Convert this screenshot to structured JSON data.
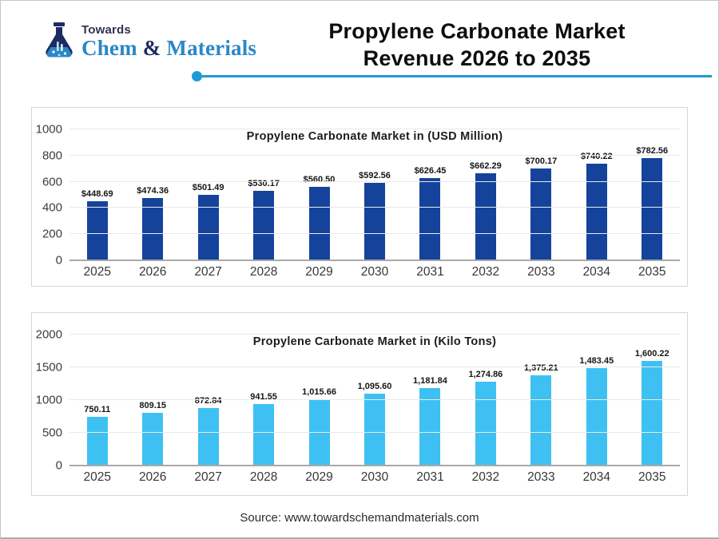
{
  "header": {
    "logo": {
      "towards": "Towards",
      "chem": "Chem",
      "amp": " & ",
      "materials": "Materials"
    },
    "title_line1": "Propylene Carbonate Market",
    "title_line2": "Revenue 2026 to 2035"
  },
  "footer": {
    "source": "Source: www.towardschemandmaterials.com"
  },
  "colors": {
    "usd_bar": "#15439C",
    "kilo_tons_bar": "#3EC1F2",
    "accent": "#1E9AD6",
    "logo_blue": "#2B87C6",
    "logo_navy": "#1D2B63"
  },
  "chart_data": [
    {
      "type": "bar",
      "title": "Propylene Carbonate Market in (USD Million)",
      "categories": [
        "2025",
        "2026",
        "2027",
        "2028",
        "2029",
        "2030",
        "2031",
        "2032",
        "2033",
        "2034",
        "2035"
      ],
      "values": [
        448.69,
        474.36,
        501.49,
        530.17,
        560.5,
        592.56,
        626.45,
        662.29,
        700.17,
        740.22,
        782.56
      ],
      "value_labels": [
        "$448.69",
        "$474.36",
        "$501.49",
        "$530.17",
        "$560.50",
        "$592.56",
        "$626.45",
        "$662.29",
        "$700.17",
        "$740.22",
        "$782.56"
      ],
      "xlabel": "",
      "ylabel": "",
      "ylim": [
        0,
        1000
      ],
      "yticks": [
        0,
        200,
        400,
        600,
        800,
        1000
      ],
      "grid": true,
      "legend": "none",
      "bar_color": "#15439C"
    },
    {
      "type": "bar",
      "title": "Propylene Carbonate Market in (Kilo Tons)",
      "categories": [
        "2025",
        "2026",
        "2027",
        "2028",
        "2029",
        "2030",
        "2031",
        "2032",
        "2033",
        "2034",
        "2035"
      ],
      "values": [
        750.11,
        809.15,
        872.84,
        941.55,
        1015.66,
        1095.6,
        1181.84,
        1274.86,
        1375.21,
        1483.45,
        1600.22
      ],
      "value_labels": [
        "750.11",
        "809.15",
        "872.84",
        "941.55",
        "1,015.66",
        "1,095.60",
        "1,181.84",
        "1,274.86",
        "1,375.21",
        "1,483.45",
        "1,600.22"
      ],
      "xlabel": "",
      "ylabel": "",
      "ylim": [
        0,
        2000
      ],
      "yticks": [
        0,
        500,
        1000,
        1500,
        2000
      ],
      "grid": true,
      "legend": "none",
      "bar_color": "#3EC1F2"
    }
  ]
}
